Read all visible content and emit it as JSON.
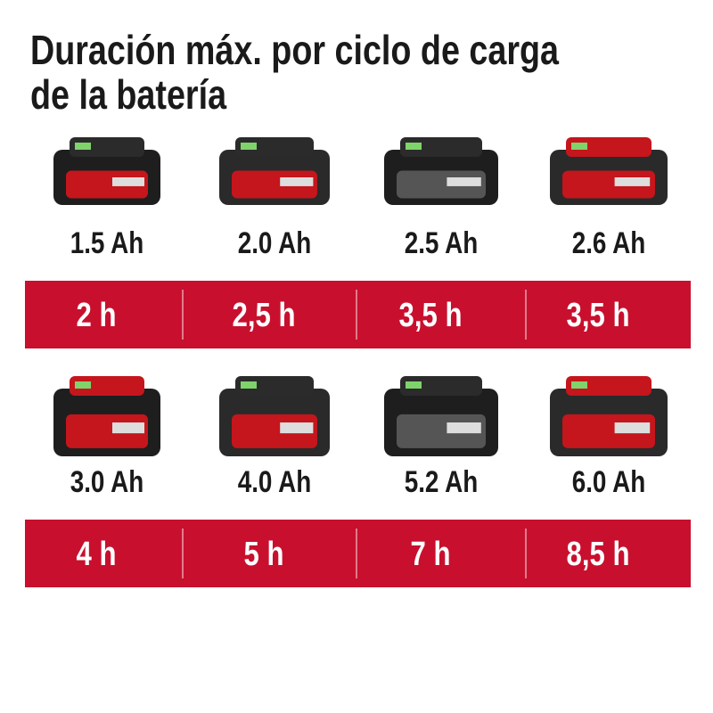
{
  "title": [
    "Duración máx. por ciclo de carga",
    "de la batería"
  ],
  "rows": [
    {
      "items": [
        {
          "capacity": "1.5 Ah",
          "duration": "2 h"
        },
        {
          "capacity": "2.0 Ah",
          "duration": "2,5 h"
        },
        {
          "capacity": "2.5 Ah",
          "duration": "3,5 h"
        },
        {
          "capacity": "2.6 Ah",
          "duration": "3,5 h"
        }
      ]
    },
    {
      "items": [
        {
          "capacity": "3.0 Ah",
          "duration": "4 h"
        },
        {
          "capacity": "4.0 Ah",
          "duration": "5 h"
        },
        {
          "capacity": "5.2 Ah",
          "duration": "7 h"
        },
        {
          "capacity": "6.0 Ah",
          "duration": "8,5 h"
        }
      ]
    }
  ]
}
